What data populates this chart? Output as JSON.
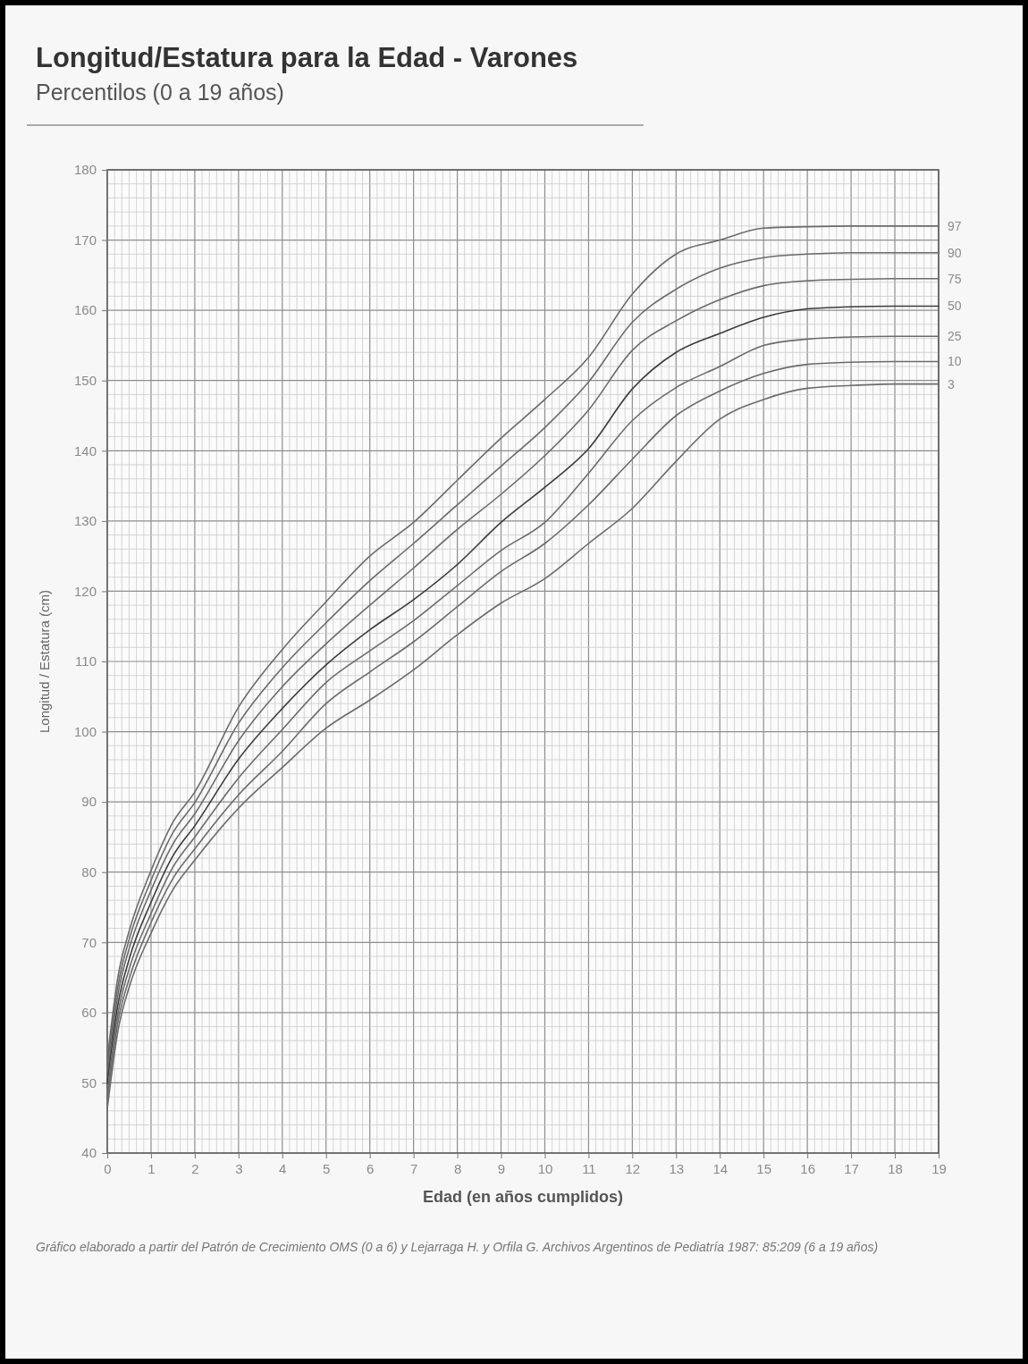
{
  "chart_data": {
    "type": "line",
    "title": "Longitud/Estatura para la Edad - Varones",
    "subtitle": "Percentilos (0 a 19 años)",
    "xlabel": "Edad (en años cumplidos)",
    "ylabel": "Longitud / Estatura (cm)",
    "annotations": [
      "Gráfico elaborado a partir del Patrón de Crecimiento OMS (0 a 6) y Lejarraga H. y Orfila G. Archivos Argentinos de Pediatría 1987: 85:209 (6 a 19 años)"
    ],
    "x": [
      0,
      0.25,
      0.5,
      1,
      1.5,
      2,
      3,
      4,
      5,
      6,
      7,
      8,
      9,
      10,
      11,
      12,
      13,
      14,
      15,
      16,
      17,
      18,
      19
    ],
    "series": [
      {
        "name": "97",
        "color": "#6b6b6b",
        "values": [
          53.4,
          65.3,
          71.6,
          80.2,
          87.1,
          91.4,
          103.5,
          111.7,
          118.5,
          125,
          129.8,
          135.8,
          141.8,
          147.3,
          153.3,
          162.3,
          168,
          170,
          171.7,
          171.9,
          172,
          172,
          172
        ]
      },
      {
        "name": "90",
        "color": "#6b6b6b",
        "values": [
          52.3,
          64.0,
          70.4,
          78.8,
          85.6,
          89.9,
          101.2,
          109.1,
          115.5,
          121.5,
          126.8,
          132.3,
          137.8,
          143.3,
          149.8,
          158.3,
          163,
          166,
          167.5,
          168,
          168.2,
          168.2,
          168.2
        ]
      },
      {
        "name": "75",
        "color": "#6b6b6b",
        "values": [
          51.2,
          62.8,
          69.1,
          77.4,
          84.0,
          88.3,
          98.7,
          106.4,
          112.5,
          118,
          123.3,
          128.8,
          133.8,
          139.3,
          145.8,
          154.3,
          158.5,
          161.5,
          163.5,
          164.2,
          164.4,
          164.5,
          164.5
        ]
      },
      {
        "name": "50",
        "color": "#3c3c3c",
        "values": [
          49.9,
          61.4,
          67.6,
          75.7,
          82.3,
          86.6,
          96.1,
          103.3,
          109.5,
          114.5,
          118.8,
          123.8,
          129.8,
          134.8,
          140.3,
          148.8,
          154,
          156.7,
          159,
          160.2,
          160.5,
          160.6,
          160.6
        ]
      },
      {
        "name": "25",
        "color": "#6b6b6b",
        "values": [
          48.6,
          60.1,
          66.2,
          74.1,
          80.7,
          85.0,
          93.4,
          100.3,
          107,
          111.5,
          115.8,
          120.8,
          125.8,
          129.8,
          136.8,
          144.3,
          149,
          152,
          155,
          155.9,
          156.2,
          156.3,
          156.3
        ]
      },
      {
        "name": "10",
        "color": "#6b6b6b",
        "values": [
          47.5,
          58.9,
          64.8,
          72.8,
          79.1,
          83.3,
          91.0,
          97.2,
          104,
          108.5,
          112.8,
          117.8,
          122.8,
          126.8,
          132.3,
          138.8,
          145,
          148.5,
          151,
          152.3,
          152.6,
          152.7,
          152.7
        ]
      },
      {
        "name": "3",
        "color": "#6b6b6b",
        "values": [
          46.3,
          57.6,
          63.6,
          71.3,
          77.5,
          81.7,
          89.1,
          94.9,
          100.5,
          104.5,
          108.8,
          113.8,
          118.3,
          121.8,
          126.8,
          131.8,
          138.5,
          144.5,
          147.3,
          148.9,
          149.3,
          149.5,
          149.5
        ]
      }
    ],
    "xlim": [
      0,
      19
    ],
    "xticks": [
      0,
      1,
      2,
      3,
      4,
      5,
      6,
      7,
      8,
      9,
      10,
      11,
      12,
      13,
      14,
      15,
      16,
      17,
      18,
      19
    ],
    "ylim": [
      40,
      180
    ],
    "yticks": [
      40,
      50,
      60,
      70,
      80,
      90,
      100,
      110,
      120,
      130,
      140,
      150,
      160,
      170,
      180
    ],
    "grid": true
  }
}
